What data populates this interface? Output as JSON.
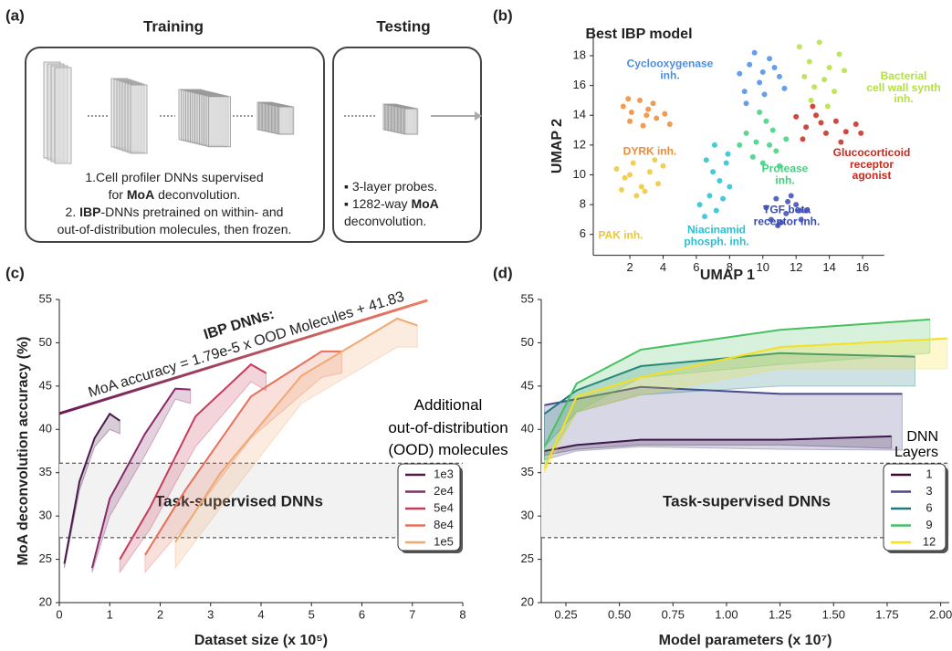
{
  "diagram": {
    "panel_label": "(a)",
    "training": {
      "title": "Training",
      "lines": [
        [
          "1.Cell profiler DNNs supervised"
        ],
        [
          "for ",
          {
            "text": "MoA",
            "bold": true
          },
          " deconvolution."
        ],
        [
          "2. ",
          {
            "text": "IBP",
            "bold": true
          },
          "-DNNs pretrained on within- and"
        ],
        [
          "out-of-distribution molecules, then frozen."
        ]
      ]
    },
    "testing": {
      "title": "Testing",
      "lines": [
        [
          "▪ 3-layer probes."
        ],
        [
          "▪ 1282-way ",
          {
            "text": "MoA",
            "bold": true
          }
        ],
        [
          "deconvolution."
        ]
      ]
    }
  },
  "chart_data": [
    {
      "type": "scatter",
      "panel_label": "(b)",
      "title": "Best IBP model",
      "xlabel": "UMAP 1",
      "ylabel": "UMAP 2",
      "xlim": [
        -0.2,
        17.3
      ],
      "ylim": [
        4.6,
        19.9
      ],
      "xticks": [
        2,
        4,
        6,
        8,
        10,
        12,
        14,
        16
      ],
      "yticks": [
        6,
        8,
        10,
        12,
        14,
        16,
        18
      ],
      "series": [
        {
          "name": "Cyclooxygenase\ninh.",
          "color": "#4a8ee8",
          "x": [
            8.6,
            9.2,
            9.8,
            10.4,
            11.0,
            8.9,
            9.5,
            10.1,
            10.7,
            11.3,
            9.0,
            10.0
          ],
          "values": [
            16.8,
            17.4,
            16.2,
            17.8,
            16.6,
            15.6,
            18.2,
            15.4,
            17.2,
            15.8,
            14.8,
            16.9
          ]
        },
        {
          "name": "Bacterial\ncell wall synth\ninh.",
          "color": "#b4e040",
          "x": [
            12.2,
            12.8,
            13.4,
            14.0,
            14.6,
            12.5,
            13.1,
            13.7,
            14.3,
            12.9,
            13.9,
            14.9
          ],
          "values": [
            18.6,
            17.6,
            18.9,
            17.2,
            18.1,
            16.6,
            15.9,
            16.4,
            15.6,
            15.0,
            14.6,
            17.0
          ]
        },
        {
          "name": "DYRK inh.",
          "color": "#f08a30",
          "x": [
            1.6,
            2.1,
            2.6,
            3.1,
            3.6,
            4.1,
            2.0,
            2.8,
            3.4,
            4.4,
            1.9,
            3.0
          ],
          "values": [
            14.6,
            14.2,
            15.0,
            14.4,
            13.8,
            14.1,
            13.6,
            13.3,
            14.8,
            13.4,
            15.1,
            14.0
          ]
        },
        {
          "name": "Glucocorticoid\nreceptor\nagonist",
          "color": "#c8281c",
          "x": [
            12.0,
            12.6,
            13.2,
            13.8,
            14.4,
            15.0,
            15.6,
            12.4,
            13.5,
            14.7,
            15.9,
            13.0
          ],
          "values": [
            13.9,
            13.2,
            14.0,
            12.8,
            13.6,
            12.9,
            13.4,
            12.4,
            13.5,
            12.2,
            12.8,
            14.6
          ]
        },
        {
          "name": "Protease\ninh.",
          "color": "#40d080",
          "x": [
            9.0,
            9.6,
            10.2,
            10.8,
            11.4,
            9.4,
            10.0,
            10.6,
            8.6,
            11.0,
            9.8,
            10.4
          ],
          "values": [
            12.8,
            12.2,
            13.6,
            11.6,
            12.4,
            11.2,
            10.8,
            13.0,
            12.0,
            10.6,
            14.2,
            12.0
          ]
        },
        {
          "name": "PAK inh.",
          "color": "#ecc838",
          "x": [
            1.2,
            1.7,
            2.2,
            2.7,
            3.2,
            3.7,
            1.5,
            2.4,
            2.9,
            3.5,
            2.0,
            4.0
          ],
          "values": [
            10.4,
            9.8,
            10.8,
            9.2,
            10.2,
            9.4,
            9.0,
            8.6,
            8.9,
            11.0,
            10.0,
            10.6
          ]
        },
        {
          "name": "Niacinamid\nphosph. inh.",
          "color": "#28c0d2",
          "x": [
            6.6,
            7.0,
            7.4,
            7.8,
            6.2,
            6.8,
            7.2,
            7.6,
            8.0,
            6.5,
            7.1,
            7.9
          ],
          "values": [
            11.0,
            10.2,
            9.6,
            10.8,
            8.0,
            8.6,
            7.6,
            8.4,
            9.2,
            7.2,
            12.0,
            11.4
          ]
        },
        {
          "name": "TGF beta\nreceptor inh.",
          "color": "#3a4cb4",
          "x": [
            10.2,
            10.8,
            11.4,
            12.0,
            12.6,
            10.5,
            11.1,
            11.7,
            12.3,
            10.9,
            11.5,
            12.2
          ],
          "values": [
            7.8,
            8.4,
            7.4,
            8.0,
            7.6,
            7.0,
            6.8,
            8.6,
            7.0,
            6.6,
            8.2,
            7.6
          ]
        }
      ]
    },
    {
      "type": "line",
      "panel_label": "(c)",
      "ylabel": "MoA deconvolution accuracy (%)",
      "xlabel": "Dataset size (x 10⁵)",
      "xlim": [
        0,
        8
      ],
      "ylim": [
        20,
        55
      ],
      "xticks": [
        0,
        1,
        2,
        3,
        4,
        5,
        6,
        7,
        8
      ],
      "yticks": [
        20,
        25,
        30,
        35,
        40,
        45,
        50,
        55
      ],
      "reference_band": {
        "label": "Task-supervised DNNs",
        "values": [
          27.5,
          36.1
        ]
      },
      "fit_line": {
        "title": "IBP DNNs:",
        "label": "MoA accuracy = 1.79e-5 x OOD Molecules + 41.83",
        "x": [
          0,
          7.3
        ],
        "values": [
          41.83,
          54.9
        ],
        "colors": [
          "#6a1a5a",
          "#f08060"
        ]
      },
      "annotation": "Additional\nout-of-distribution\n(OOD) molecules",
      "legend": "lower right",
      "series": [
        {
          "name": "1e3",
          "color": "#4a1a4a",
          "x": [
            0.1,
            0.4,
            0.7,
            1.0,
            1.2
          ],
          "values": [
            24.5,
            34,
            39,
            41.8,
            41
          ],
          "lower": [
            24,
            33,
            38,
            40,
            39.5
          ]
        },
        {
          "name": "2e4",
          "color": "#8a2a6a",
          "x": [
            0.65,
            1.0,
            1.7,
            2.3,
            2.6
          ],
          "values": [
            24,
            32,
            39.5,
            44.7,
            44.6
          ],
          "lower": [
            23.5,
            30,
            37,
            43.5,
            43
          ]
        },
        {
          "name": "5e4",
          "color": "#c83a5a",
          "x": [
            1.2,
            1.8,
            2.7,
            3.8,
            4.1
          ],
          "values": [
            25,
            31,
            41.5,
            47.5,
            46.5
          ],
          "lower": [
            23.5,
            28.5,
            38,
            45.5,
            44.5
          ]
        },
        {
          "name": "8e4",
          "color": "#e8705a",
          "x": [
            1.7,
            2.5,
            3.8,
            5.2,
            5.6
          ],
          "values": [
            25.5,
            33,
            43.8,
            49,
            49
          ],
          "lower": [
            23.5,
            29,
            39,
            46,
            46.5
          ]
        },
        {
          "name": "1e5",
          "color": "#f0a870",
          "x": [
            2.3,
            3.2,
            4.8,
            6.7,
            7.1
          ],
          "values": [
            27,
            35,
            46.2,
            52.8,
            52
          ],
          "lower": [
            24,
            31,
            43,
            49.5,
            49.5
          ]
        }
      ]
    },
    {
      "type": "line",
      "panel_label": "(d)",
      "xlabel": "Model parameters (x 10⁷)",
      "xlim": [
        0.135,
        2.04
      ],
      "ylim": [
        20,
        55
      ],
      "xticks": [
        0.25,
        {
          "value": 0.5,
          "label": "0.50"
        },
        0.75,
        {
          "value": 1,
          "label": "1.00"
        },
        1.25,
        {
          "value": 1.5,
          "label": "1.50"
        },
        1.75,
        {
          "value": 2,
          "label": "2.00"
        }
      ],
      "yticks": [
        20,
        25,
        30,
        35,
        40,
        45,
        50,
        55
      ],
      "reference_band": {
        "label": "Task-supervised DNNs",
        "values": [
          27.5,
          36.1
        ]
      },
      "legend_title": "DNN\nLayers",
      "legend": "lower right",
      "series": [
        {
          "name": "1",
          "color": "#3a0a3a",
          "x": [
            0.15,
            0.3,
            0.6,
            1.25,
            1.77
          ],
          "values": [
            37.5,
            38.2,
            38.8,
            38.8,
            39.2
          ],
          "lower": [
            37,
            37.7,
            38.2,
            38.2,
            37.8
          ]
        },
        {
          "name": "3",
          "color": "#4a4a8a",
          "x": [
            0.15,
            0.3,
            0.6,
            1.25,
            1.82
          ],
          "values": [
            42.8,
            43.5,
            44.9,
            44.1,
            44.1
          ],
          "lower": [
            36.5,
            37.5,
            38,
            37.7,
            37.6
          ]
        },
        {
          "name": "6",
          "color": "#1e7a80",
          "x": [
            0.15,
            0.3,
            0.6,
            1.25,
            1.88
          ],
          "values": [
            41.8,
            44.5,
            47.3,
            48.8,
            48.4
          ],
          "lower": [
            38,
            42,
            44,
            45,
            45
          ]
        },
        {
          "name": "9",
          "color": "#48c060",
          "x": [
            0.15,
            0.3,
            0.6,
            1.25,
            1.95
          ],
          "values": [
            38,
            45.3,
            49.2,
            51.5,
            52.7
          ],
          "lower": [
            36,
            42,
            46,
            47.5,
            48.8
          ]
        },
        {
          "name": "12",
          "color": "#f4e020",
          "x": [
            0.15,
            0.3,
            0.6,
            1.25,
            2.03
          ],
          "values": [
            35.5,
            43.8,
            46,
            49.5,
            50.5
          ],
          "lower": [
            35,
            42,
            44,
            47,
            47
          ]
        }
      ]
    }
  ]
}
